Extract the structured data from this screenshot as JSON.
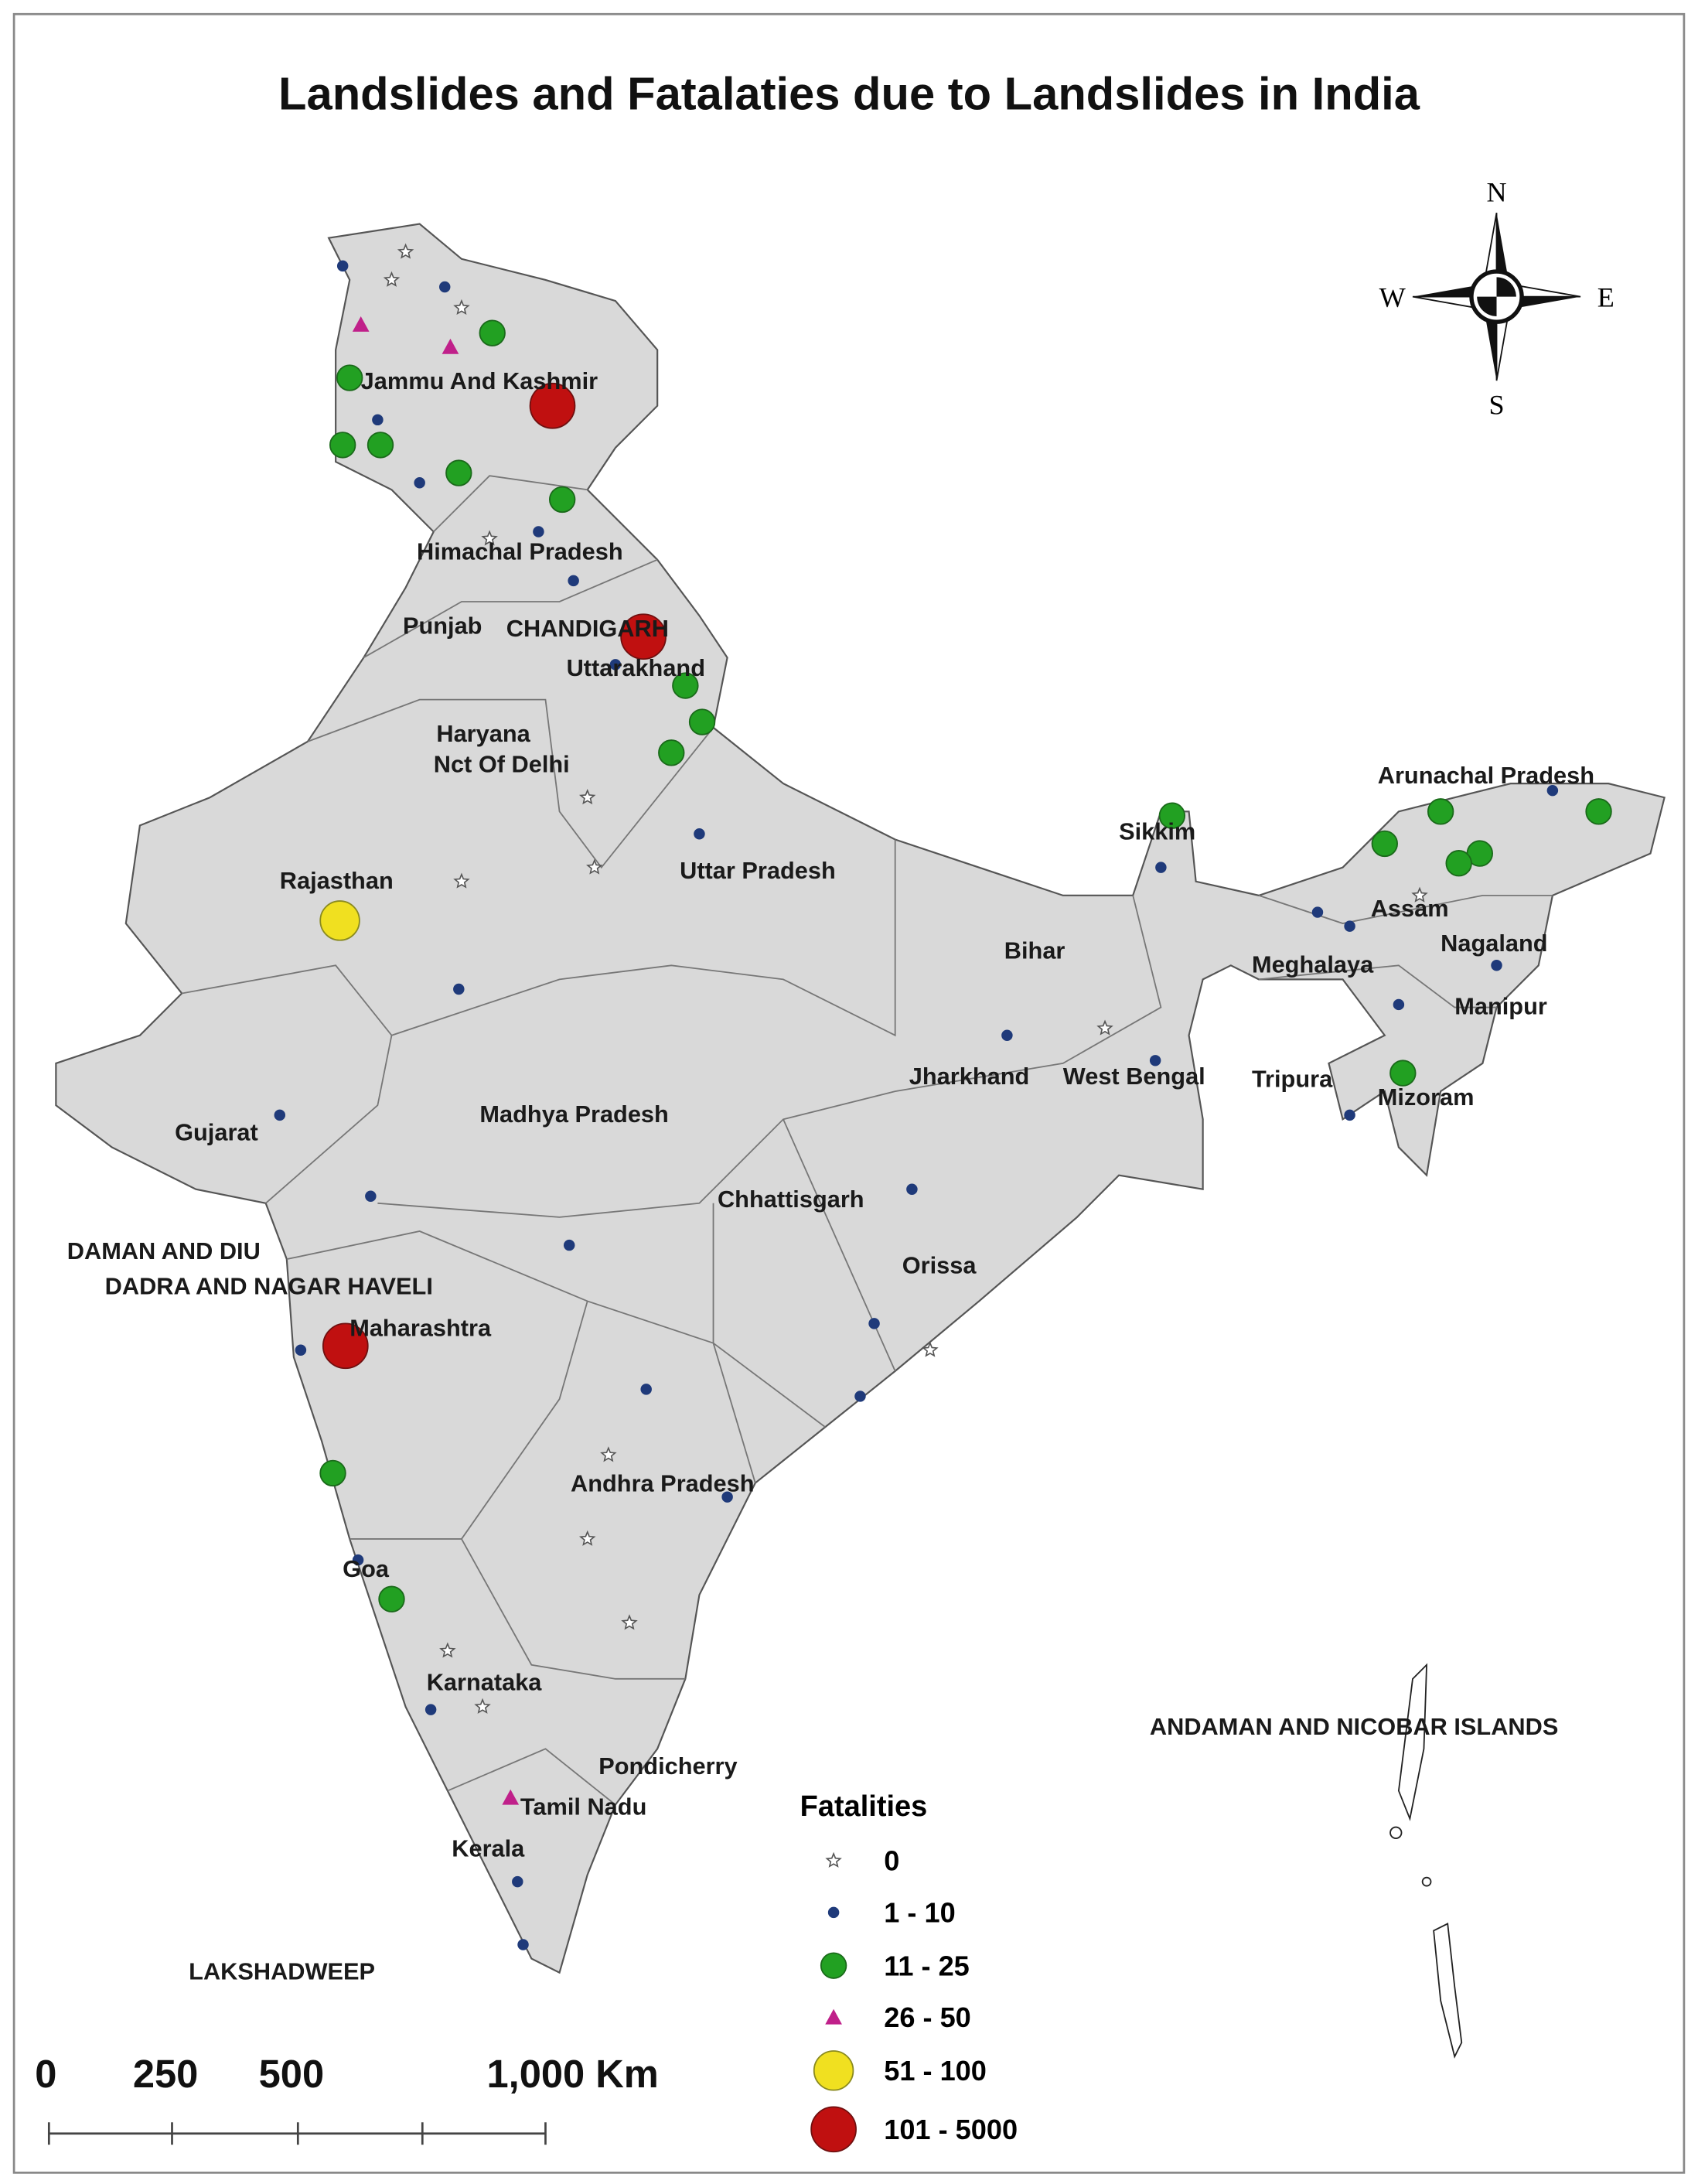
{
  "title": "Landslides and Fatalaties due to Landslides in India",
  "compass": {
    "north": "N",
    "south": "S",
    "east": "E",
    "west": "W"
  },
  "regions": [
    "Jammu And Kashmir",
    "Himachal Pradesh",
    "Punjab",
    "CHANDIGARH",
    "Uttarakhand",
    "Haryana",
    "Nct Of Delhi",
    "Rajasthan",
    "Uttar Pradesh",
    "Bihar",
    "Sikkim",
    "Arunachal Pradesh",
    "Assam",
    "Nagaland",
    "Meghalaya",
    "Manipur",
    "Tripura",
    "Mizoram",
    "Jharkhand",
    "West Bengal",
    "Gujarat",
    "Madhya Pradesh",
    "Chhattisgarh",
    "Orissa",
    "DAMAN AND DIU",
    "DADRA AND NAGAR HAVELI",
    "Maharashtra",
    "Andhra Pradesh",
    "Goa",
    "Karnataka",
    "Pondicherry",
    "Tamil Nadu",
    "Kerala",
    "LAKSHADWEEP",
    "ANDAMAN AND NICOBAR ISLANDS"
  ],
  "legend": {
    "title": "Fatalities",
    "items": [
      "0",
      "1 - 10",
      "11 - 25",
      "26 - 50",
      "51 - 100",
      "101 - 5000"
    ]
  },
  "scale_bar": [
    "0",
    "250",
    "500",
    "1,000 Km"
  ]
}
